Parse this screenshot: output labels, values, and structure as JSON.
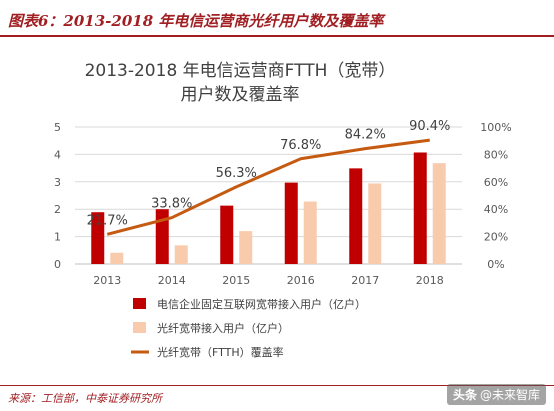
{
  "header": {
    "figure_label": "图表6：2013-2018 年电信运营商光纤用户数及覆盖率"
  },
  "footer": {
    "source": "来源：工信部，中泰证券研究所",
    "watermark_mark": "头条",
    "watermark": "@未来智库"
  },
  "colors": {
    "accent": "#a11f23",
    "bar_total": "#c00000",
    "bar_fiber": "#f8cbad",
    "line": "#c55a11",
    "axis_text": "#595959",
    "grid": "#d9d9d9"
  },
  "chart_data": {
    "type": "bar",
    "title_line1": "2013-2018 年电信运营商FTTH（宽带）",
    "title_line2": "用户数及覆盖率",
    "categories": [
      "2013",
      "2014",
      "2015",
      "2016",
      "2017",
      "2018"
    ],
    "series": [
      {
        "name": "电信企业固定互联网宽带接入用户（亿户）",
        "kind": "bar",
        "axis": "left",
        "values": [
          1.89,
          2.0,
          2.13,
          2.97,
          3.49,
          4.07
        ]
      },
      {
        "name": "光纤宽带接入用户（亿户）",
        "kind": "bar",
        "axis": "left",
        "values": [
          0.41,
          0.68,
          1.2,
          2.28,
          2.94,
          3.68
        ]
      },
      {
        "name": "光纤宽带（FTTH）覆盖率",
        "kind": "line",
        "axis": "right",
        "values": [
          21.7,
          33.8,
          56.3,
          76.8,
          84.2,
          90.4
        ],
        "labels": [
          "21.7%",
          "33.8%",
          "56.3%",
          "76.8%",
          "84.2%",
          "90.4%"
        ]
      }
    ],
    "ylim_left": [
      0,
      5
    ],
    "yticks_left": [
      "0",
      "1",
      "2",
      "3",
      "4",
      "5"
    ],
    "ylim_right": [
      0,
      100
    ],
    "yticks_right": [
      "0%",
      "20%",
      "40%",
      "60%",
      "80%",
      "100%"
    ],
    "grid": true,
    "legend_placement": "bottom-left"
  }
}
